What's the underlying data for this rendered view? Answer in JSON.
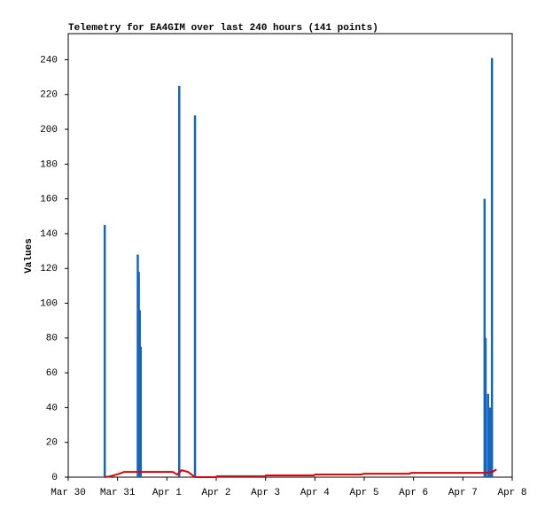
{
  "chart_data": {
    "type": "combo",
    "title": "Telemetry for EA4GIM over last 240 hours (141 points)",
    "y_label": "Values",
    "xlim": [
      0,
      9
    ],
    "xticks": [
      {
        "value": 0,
        "label": "Mar 30"
      },
      {
        "value": 1,
        "label": "Mar 31"
      },
      {
        "value": 2,
        "label": "Apr 1"
      },
      {
        "value": 3,
        "label": "Apr 2"
      },
      {
        "value": 4,
        "label": "Apr 3"
      },
      {
        "value": 5,
        "label": "Apr 4"
      },
      {
        "value": 6,
        "label": "Apr 5"
      },
      {
        "value": 7,
        "label": "Apr 6"
      },
      {
        "value": 8,
        "label": "Apr 7"
      },
      {
        "value": 9,
        "label": "Apr 8"
      }
    ],
    "ylim": [
      0,
      255
    ],
    "yticks": [
      0,
      20,
      40,
      60,
      80,
      100,
      120,
      140,
      160,
      180,
      200,
      220,
      240
    ],
    "series": [
      {
        "type": "impulse",
        "color": "#1565c0",
        "x": [
          0.74,
          1.41,
          1.43,
          1.45,
          1.47,
          2.25,
          2.57,
          8.44,
          8.46,
          8.51,
          8.55,
          8.59
        ],
        "values": [
          145,
          128,
          118,
          96,
          75,
          225,
          208,
          160,
          80,
          48,
          40,
          241
        ]
      },
      {
        "type": "line",
        "color": "#e00000",
        "x": [
          0.74,
          0.86,
          1.04,
          1.13,
          2.12,
          2.21,
          2.3,
          2.43,
          2.57,
          3.0,
          3.01,
          3.99,
          4.01,
          4.98,
          5.01,
          5.95,
          5.98,
          6.92,
          6.95,
          8.46,
          8.6,
          8.68
        ],
        "values": [
          0,
          0.5,
          2,
          3,
          3,
          1.5,
          4,
          3,
          0,
          0,
          0.5,
          0.5,
          1,
          1,
          1.5,
          1.5,
          2,
          2,
          2.5,
          2.5,
          3,
          4.5
        ]
      }
    ]
  }
}
